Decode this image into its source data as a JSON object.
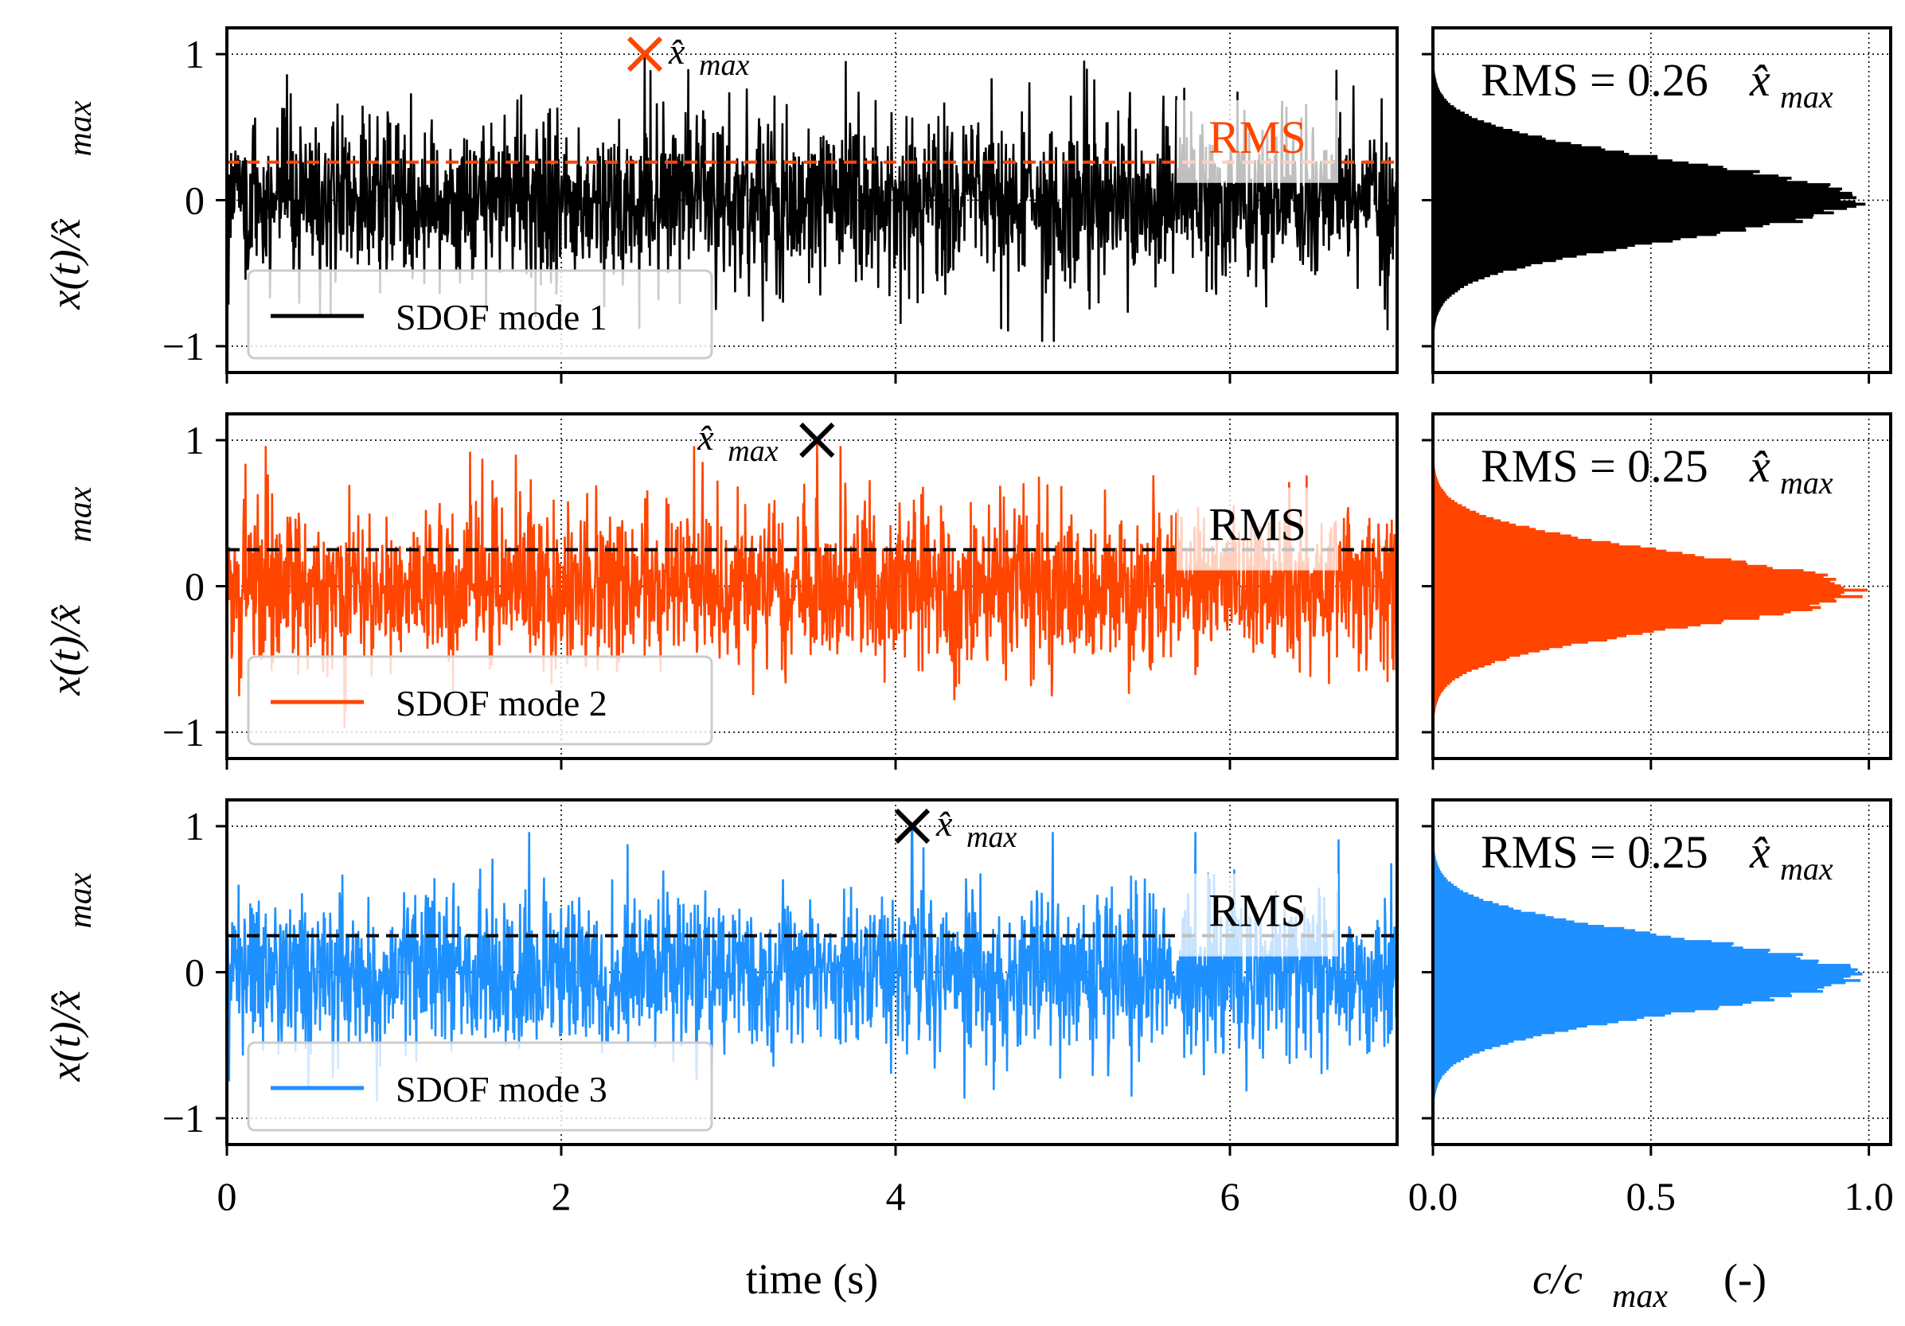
{
  "figure": {
    "time_axis_label": "time (s)",
    "hist_axis_label": {
      "main": "c/c",
      "sub": "max",
      "unit": "(-)"
    },
    "ylabel": {
      "main": "x(t)/x̂",
      "sub": "max"
    },
    "xmax_label": {
      "main": "x̂",
      "sub": "max"
    },
    "rms_label": "RMS"
  },
  "chart_data": [
    {
      "type": "line",
      "name": "SDOF mode 1",
      "color": "#000000",
      "marker_color": "#ff4500",
      "rms_line_color": "#ff4500",
      "rms_box_text_color": "#ff4500",
      "xlim": [
        0,
        7
      ],
      "ylim": [
        -1.18,
        1.18
      ],
      "x_ticks": [
        "0",
        "2",
        "4",
        "6"
      ],
      "y_ticks": [
        "1",
        "0",
        "−1"
      ],
      "rms": 0.26,
      "peak": {
        "x": 2.5,
        "y": 1.0
      },
      "legend": {
        "label": "SDOF mode 1",
        "position": "lower-left"
      },
      "grid": true,
      "histogram": {
        "type": "histogram",
        "rms_text": "RMS = 0.26",
        "xlim": [
          0,
          1.05
        ],
        "x_ticks": [
          "0.0",
          "0.5",
          "1.0"
        ],
        "peak_center": 0.0,
        "spread": 0.26
      }
    },
    {
      "type": "line",
      "name": "SDOF mode 2",
      "color": "#ff4500",
      "marker_color": "#000000",
      "rms_line_color": "#000000",
      "rms_box_text_color": "#000000",
      "xlim": [
        0,
        7
      ],
      "ylim": [
        -1.18,
        1.18
      ],
      "x_ticks": [
        "0",
        "2",
        "4",
        "6"
      ],
      "y_ticks": [
        "1",
        "0",
        "−1"
      ],
      "rms": 0.25,
      "peak": {
        "x": 3.53,
        "y": 1.0
      },
      "legend": {
        "label": "SDOF mode 2",
        "position": "lower-left"
      },
      "grid": true,
      "histogram": {
        "type": "histogram",
        "rms_text": "RMS = 0.25",
        "xlim": [
          0,
          1.05
        ],
        "x_ticks": [
          "0.0",
          "0.5",
          "1.0"
        ],
        "peak_center": -0.03,
        "spread": 0.25
      }
    },
    {
      "type": "line",
      "name": "SDOF mode 3",
      "color": "#1e90ff",
      "marker_color": "#000000",
      "rms_line_color": "#000000",
      "rms_box_text_color": "#000000",
      "xlim": [
        0,
        7
      ],
      "ylim": [
        -1.18,
        1.18
      ],
      "x_ticks": [
        "0",
        "2",
        "4",
        "6"
      ],
      "y_ticks": [
        "1",
        "0",
        "−1"
      ],
      "rms": 0.25,
      "peak": {
        "x": 4.1,
        "y": 1.0
      },
      "legend": {
        "label": "SDOF mode 3",
        "position": "lower-left"
      },
      "grid": true,
      "histogram": {
        "type": "histogram",
        "rms_text": "RMS = 0.25",
        "xlim": [
          0,
          1.05
        ],
        "x_ticks": [
          "0.0",
          "0.5",
          "1.0"
        ],
        "peak_center": -0.02,
        "spread": 0.25
      }
    }
  ]
}
